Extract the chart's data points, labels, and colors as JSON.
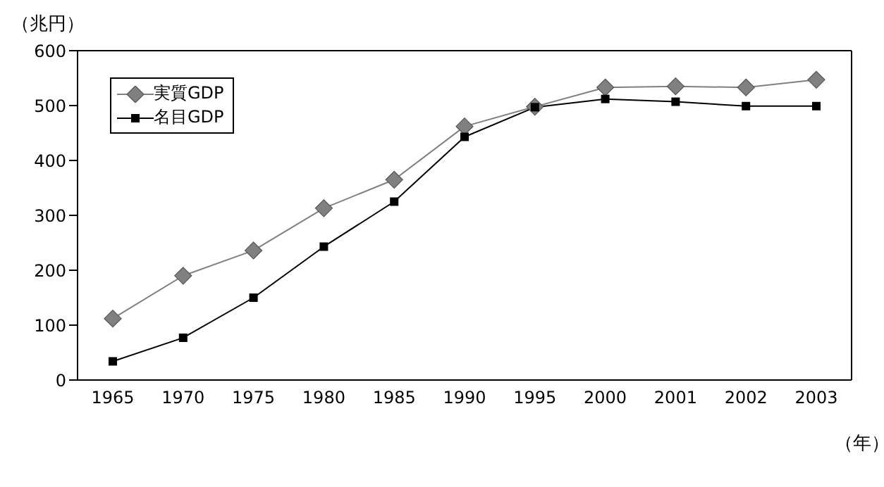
{
  "chart_data": {
    "type": "line",
    "ylabel": "（兆円）",
    "xlabel": "（年）",
    "categories": [
      "1965",
      "1970",
      "1975",
      "1980",
      "1985",
      "1990",
      "1995",
      "2000",
      "2001",
      "2002",
      "2003"
    ],
    "series": [
      {
        "name": "実質GDP",
        "color": "#808080",
        "marker": "diamond",
        "values": [
          112,
          190,
          236,
          313,
          365,
          462,
          498,
          533,
          535,
          533,
          547
        ]
      },
      {
        "name": "名目GDP",
        "color": "#000000",
        "marker": "square",
        "values": [
          34,
          77,
          150,
          243,
          325,
          443,
          497,
          512,
          507,
          499,
          499
        ]
      }
    ],
    "ylim": [
      0,
      600
    ],
    "yticks": [
      0,
      100,
      200,
      300,
      400,
      500,
      600
    ],
    "grid": false,
    "legend": "top left"
  }
}
